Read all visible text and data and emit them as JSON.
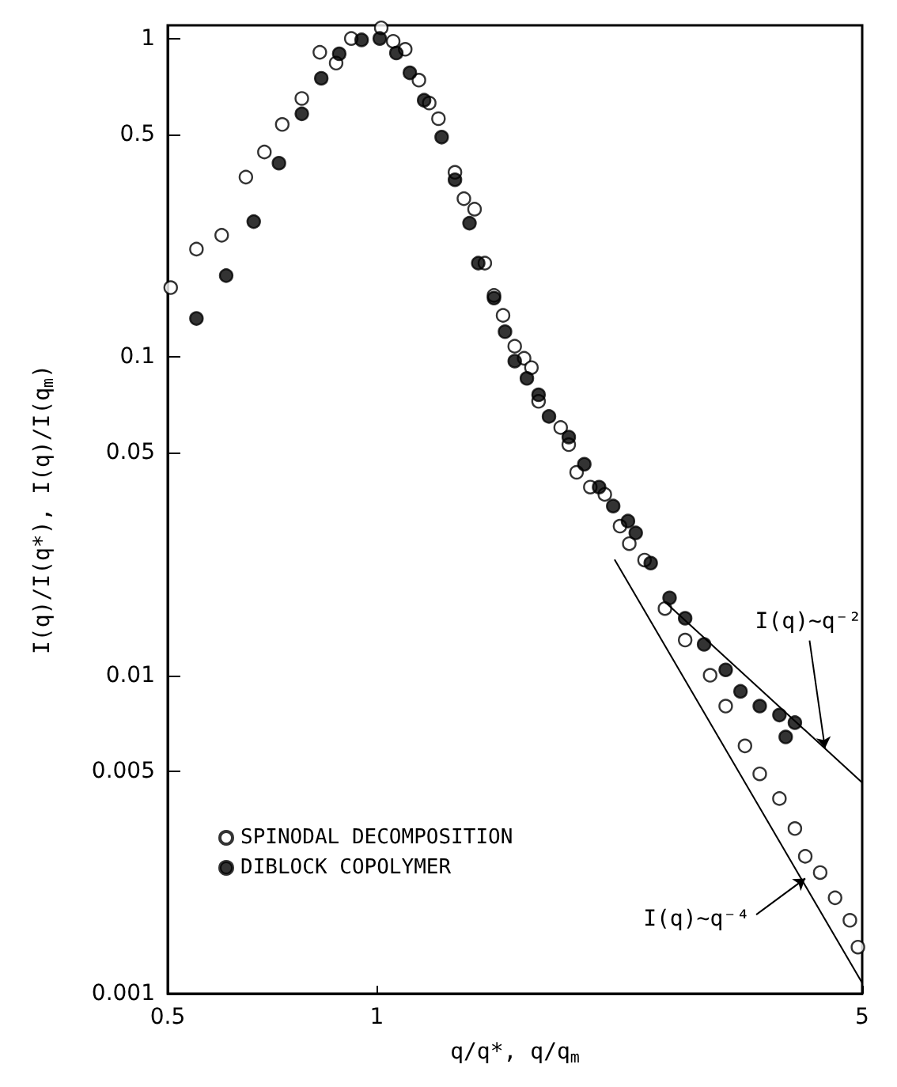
{
  "chart_data": {
    "type": "scatter",
    "xlabel": "q/q*, q/q$_{m}$",
    "ylabel": "I(q)/I(q*), I(q)/I(q$_{m}$)",
    "log": "xy",
    "xlim": [
      0.5,
      5
    ],
    "xticks": [
      0.5,
      1,
      5
    ],
    "ylim": [
      0.001,
      1.1
    ],
    "yticks": [
      0.001,
      0.005,
      0.01,
      0.05,
      0.1,
      0.5,
      1
    ],
    "grid": false,
    "legend": "bottom left",
    "series": [
      {
        "name": "SPINODAL DECOMPOSITION",
        "color": "#ffffff",
        "marker": "circle",
        "x": [
          0.505,
          0.55,
          0.598,
          0.648,
          0.689,
          0.731,
          0.78,
          0.828,
          0.874,
          0.919,
          1.015,
          1.056,
          1.099,
          1.15,
          1.19,
          1.227,
          1.296,
          1.335,
          1.383,
          1.431,
          1.475,
          1.52,
          1.58,
          1.63,
          1.67,
          1.71,
          1.84,
          1.89,
          1.94,
          2.03,
          2.13,
          2.24,
          2.31,
          2.43,
          2.6,
          2.78,
          3.02,
          3.18,
          3.39,
          3.56,
          3.8,
          4.0,
          4.14,
          4.35,
          4.57,
          4.8,
          4.93
        ],
        "values": [
          0.165,
          0.218,
          0.241,
          0.367,
          0.44,
          0.537,
          0.648,
          0.905,
          0.837,
          1.0,
          1.08,
          0.98,
          0.925,
          0.74,
          0.627,
          0.56,
          0.38,
          0.314,
          0.291,
          0.197,
          0.156,
          0.135,
          0.108,
          0.099,
          0.0925,
          0.0725,
          0.06,
          0.053,
          0.0434,
          0.039,
          0.037,
          0.0294,
          0.0259,
          0.023,
          0.0162,
          0.0129,
          0.01,
          0.008,
          0.006,
          0.0049,
          0.0041,
          0.0033,
          0.0027,
          0.0024,
          0.002,
          0.0017,
          0.0014
        ]
      },
      {
        "name": "DIBLOCK COPOLYMER",
        "color": "#000000",
        "marker": "circle",
        "x": [
          0.55,
          0.607,
          0.665,
          0.723,
          0.78,
          0.832,
          0.883,
          0.951,
          1.01,
          1.067,
          1.116,
          1.17,
          1.24,
          1.296,
          1.36,
          1.4,
          1.475,
          1.53,
          1.58,
          1.645,
          1.71,
          1.77,
          1.89,
          1.99,
          2.09,
          2.19,
          2.3,
          2.36,
          2.48,
          2.64,
          2.78,
          2.96,
          3.18,
          3.34,
          3.56,
          3.8,
          4.0,
          3.88
        ],
        "values": [
          0.132,
          0.18,
          0.266,
          0.406,
          0.58,
          0.75,
          0.895,
          0.99,
          1.0,
          0.9,
          0.78,
          0.64,
          0.49,
          0.36,
          0.263,
          0.197,
          0.153,
          0.12,
          0.097,
          0.0856,
          0.076,
          0.065,
          0.056,
          0.046,
          0.039,
          0.034,
          0.0305,
          0.028,
          0.0225,
          0.0175,
          0.0151,
          0.0125,
          0.0104,
          0.0089,
          0.008,
          0.0075,
          0.0071,
          0.0064
        ]
      },
      {
        "type": "line",
        "color": "#000000",
        "marker": "none",
        "x": [
          2.6,
          5
        ],
        "values": [
          0.017,
          0.0046
        ]
      },
      {
        "type": "line",
        "color": "#000000",
        "marker": "none",
        "x": [
          2.2,
          5
        ],
        "values": [
          0.0231,
          0.00108
        ]
      }
    ],
    "annotations": [
      {
        "text": "I(q)~q⁻²",
        "x": 4.42,
        "y": 0.0059
      },
      {
        "text": "I(q)~q⁻⁴",
        "x": 4.14,
        "y": 0.0023
      }
    ]
  }
}
